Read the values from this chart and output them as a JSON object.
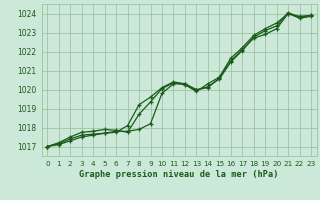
{
  "bg_color": "#cce8d8",
  "grid_color": "#99bb99",
  "line_color": "#1a5c1a",
  "xlabel": "Graphe pression niveau de la mer (hPa)",
  "xlabel_color": "#1a5c1a",
  "ylim": [
    1016.5,
    1024.5
  ],
  "xlim": [
    -0.5,
    23.5
  ],
  "yticks": [
    1017,
    1018,
    1019,
    1020,
    1021,
    1022,
    1023,
    1024
  ],
  "xticks": [
    0,
    1,
    2,
    3,
    4,
    5,
    6,
    7,
    8,
    9,
    10,
    11,
    12,
    13,
    14,
    15,
    16,
    17,
    18,
    19,
    20,
    21,
    22,
    23
  ],
  "series1_x": [
    0,
    1,
    2,
    3,
    4,
    5,
    6,
    7,
    8,
    9,
    10,
    11,
    12,
    13,
    14,
    15,
    16,
    17,
    18,
    19,
    20,
    21,
    22,
    23
  ],
  "series1_y": [
    1017.0,
    1017.1,
    1017.3,
    1017.5,
    1017.6,
    1017.7,
    1017.8,
    1017.8,
    1017.9,
    1018.2,
    1019.8,
    1020.3,
    1020.3,
    1020.0,
    1020.1,
    1020.6,
    1021.5,
    1022.1,
    1022.7,
    1022.9,
    1023.2,
    1024.0,
    1023.75,
    1023.85
  ],
  "series2_x": [
    0,
    1,
    2,
    3,
    4,
    5,
    6,
    7,
    8,
    9,
    10,
    11,
    12,
    13,
    14,
    15,
    16,
    17,
    18,
    19,
    20,
    21,
    22,
    23
  ],
  "series2_y": [
    1017.0,
    1017.15,
    1017.4,
    1017.6,
    1017.65,
    1017.7,
    1017.75,
    1018.1,
    1019.2,
    1019.6,
    1020.1,
    1020.4,
    1020.3,
    1019.95,
    1020.15,
    1020.55,
    1021.45,
    1022.05,
    1022.75,
    1023.1,
    1023.35,
    1024.05,
    1023.8,
    1023.9
  ],
  "series3_x": [
    0,
    1,
    2,
    3,
    4,
    5,
    6,
    7,
    8,
    9,
    10,
    11,
    12,
    13,
    14,
    15,
    16,
    17,
    18,
    19,
    20,
    21,
    22,
    23
  ],
  "series3_y": [
    1017.0,
    1017.2,
    1017.5,
    1017.75,
    1017.8,
    1017.9,
    1017.85,
    1017.75,
    1018.7,
    1019.35,
    1020.05,
    1020.35,
    1020.25,
    1019.9,
    1020.3,
    1020.65,
    1021.65,
    1022.2,
    1022.85,
    1023.2,
    1023.5,
    1024.0,
    1023.85,
    1023.9
  ]
}
